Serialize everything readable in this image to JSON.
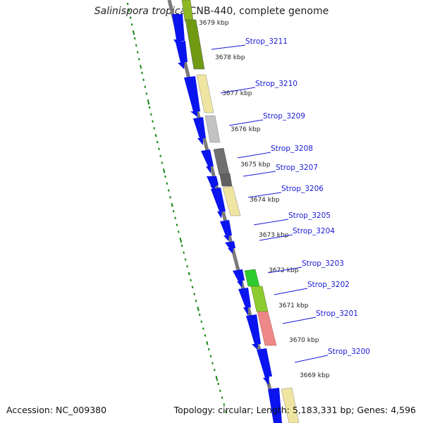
{
  "title": {
    "species": "Salinispora tropica",
    "strain": "CNB-440, complete genome"
  },
  "footer": {
    "accession": "Accession: NC_009380",
    "topology": "Topology: circular; Length: 5,183,331 bp; Genes: 4,596"
  },
  "colors": {
    "backbone": "#7a7a7a",
    "cds": "#0a14ee",
    "tick": "#118811",
    "label": "#1a1ad6",
    "leader": "#1a1ad6"
  },
  "kbp_labels": [
    "3679 kbp",
    "3678 kbp",
    "3677 kbp",
    "3676 kbp",
    "3675 kbp",
    "3674 kbp",
    "3673 kbp",
    "3672 kbp",
    "3671 kbp",
    "3670 kbp",
    "3669 kbp"
  ],
  "gene_labels": [
    "Strop_3211",
    "Strop_3210",
    "Strop_3209",
    "Strop_3208",
    "Strop_3207",
    "Strop_3206",
    "Strop_3205",
    "Strop_3204",
    "Strop_3203",
    "Strop_3202",
    "Strop_3201",
    "Strop_3200"
  ]
}
